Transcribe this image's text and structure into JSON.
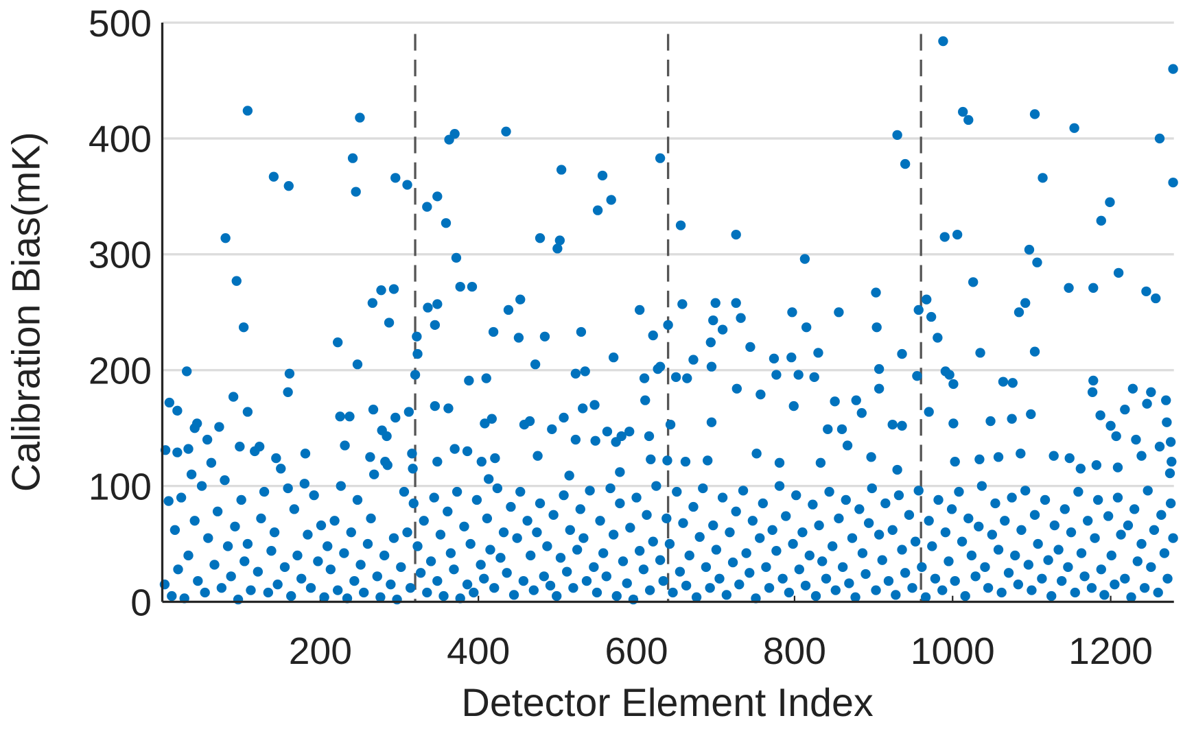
{
  "chart_data": {
    "type": "scatter",
    "x_label": "Detector Element Index",
    "y_label": "Calibration Bias(mK)",
    "xlim": [
      0,
      1280
    ],
    "ylim": [
      0,
      500
    ],
    "xticks": [
      200,
      400,
      600,
      800,
      1000,
      1200
    ],
    "yticks": [
      0,
      100,
      200,
      300,
      400,
      500
    ],
    "grid": true,
    "reference_lines": [
      320,
      640,
      960
    ],
    "x": [
      988,
      1279,
      108,
      250,
      1013,
      1020,
      1104,
      1154,
      435,
      370,
      363,
      930,
      1262,
      241,
      630,
      940,
      505,
      141,
      295,
      310,
      160,
      557,
      1114,
      1279,
      245,
      348,
      335,
      568,
      551,
      1199,
      359,
      1188,
      656,
      80,
      478,
      503,
      500,
      726,
      990,
      1006,
      1097,
      1107,
      372,
      813,
      1026,
      94,
      1210,
      1178,
      1147,
      1245,
      1257,
      903,
      377,
      392,
      277,
      293,
      266,
      453,
      658,
      700,
      726,
      967,
      1092,
      336,
      348,
      438,
      604,
      797,
      856,
      957,
      973,
      732,
      1084,
      640,
      103,
      287,
      345,
      419,
      451,
      484,
      530,
      697,
      709,
      815,
      904,
      981,
      621,
      222,
      322,
      694,
      744,
      991,
      996,
      936,
      1104,
      1035,
      830,
      774,
      796,
      672,
      571,
      630,
      627,
      472,
      247,
      323,
      31,
      161,
      320,
      388,
      410,
      523,
      535,
      610,
      695,
      650,
      664,
      777,
      805,
      825,
      907,
      955,
      1001,
      1064,
      1178,
      1076,
      159,
      1177,
      727,
      757,
      907,
      878,
      851,
      611,
      90,
      9,
      19,
      108,
      225,
      237,
      267,
      295,
      312,
      345,
      362,
      508,
      532,
      547,
      417,
      465,
      799,
      970,
      1001,
      1048,
      1099,
      1075,
      1218,
      1246,
      1271,
      1187,
      1270,
      1251,
      1228,
      1200,
      1207,
      1232,
      924,
      936,
      885,
      695,
      643,
      616,
      563,
      581,
      591,
      493,
      458,
      523,
      408,
      72,
      41,
      44,
      57,
      123,
      98,
      4,
      19,
      33,
      181,
      144,
      231,
      278,
      284,
      263,
      282,
      316,
      317,
      348,
      370,
      386,
      404,
      421,
      413,
      475,
      515,
      548,
      574,
      579,
      618,
      639,
      662,
      690,
      752,
      781,
      833,
      842,
      860,
      867,
      897,
      930,
      1003,
      1034,
      1058,
      1086,
      1128,
      1148,
      1162,
      1182,
      1209,
      1239,
      1262,
      1277,
      1276,
      1275,
      3,
      8,
      12,
      16,
      20,
      24,
      28,
      33,
      37,
      41,
      45,
      50,
      54,
      58,
      62,
      66,
      70,
      75,
      79,
      83,
      87,
      92,
      96,
      100,
      104,
      108,
      112,
      117,
      121,
      125,
      129,
      134,
      138,
      142,
      146,
      150,
      155,
      159,
      163,
      167,
      171,
      176,
      180,
      184,
      188,
      192,
      197,
      201,
      205,
      209,
      213,
      218,
      222,
      226,
      230,
      234,
      239,
      243,
      247,
      251,
      255,
      260,
      264,
      268,
      272,
      276,
      281,
      285,
      289,
      293,
      297,
      302,
      306,
      310,
      314,
      318,
      323,
      327,
      331,
      335,
      340,
      344,
      348,
      352,
      356,
      361,
      365,
      369,
      373,
      377,
      382,
      386,
      390,
      394,
      398,
      403,
      407,
      411,
      415,
      420,
      424,
      428,
      432,
      436,
      441,
      445,
      449,
      453,
      457,
      462,
      466,
      470,
      474,
      478,
      483,
      487,
      491,
      495,
      499,
      504,
      508,
      512,
      516,
      520,
      525,
      529,
      533,
      537,
      541,
      546,
      550,
      554,
      558,
      562,
      567,
      571,
      575,
      579,
      583,
      588,
      592,
      596,
      600,
      604,
      609,
      613,
      617,
      621,
      625,
      630,
      634,
      638,
      642,
      646,
      651,
      655,
      659,
      663,
      667,
      672,
      676,
      680,
      684,
      688,
      693,
      697,
      701,
      705,
      709,
      714,
      718,
      722,
      726,
      730,
      735,
      739,
      743,
      747,
      751,
      756,
      760,
      764,
      768,
      772,
      777,
      781,
      785,
      789,
      793,
      798,
      802,
      806,
      810,
      814,
      819,
      823,
      827,
      831,
      835,
      840,
      844,
      848,
      852,
      856,
      861,
      865,
      869,
      873,
      877,
      882,
      886,
      890,
      894,
      898,
      903,
      907,
      911,
      915,
      919,
      924,
      928,
      932,
      936,
      940,
      945,
      949,
      953,
      957,
      961,
      966,
      970,
      974,
      978,
      982,
      987,
      991,
      995,
      999,
      1003,
      1008,
      1012,
      1016,
      1020,
      1024,
      1029,
      1033,
      1037,
      1041,
      1045,
      1050,
      1054,
      1058,
      1062,
      1066,
      1071,
      1075,
      1079,
      1083,
      1087,
      1092,
      1096,
      1100,
      1104,
      1108,
      1113,
      1117,
      1121,
      1125,
      1129,
      1134,
      1138,
      1142,
      1146,
      1150,
      1155,
      1159,
      1163,
      1167,
      1171,
      1176,
      1180,
      1184,
      1188,
      1192,
      1197,
      1201,
      1205,
      1209,
      1213,
      1218,
      1222,
      1226,
      1230,
      1234,
      1239,
      1243,
      1247,
      1251,
      1255,
      1260,
      1264,
      1268,
      1272,
      1276,
      1279
    ],
    "series": [
      {
        "color": "#0072bd",
        "values": [
          484,
          460,
          424,
          418,
          423,
          416,
          421,
          409,
          406,
          404,
          399,
          403,
          400,
          383,
          383,
          378,
          373,
          367,
          366,
          360,
          359,
          368,
          366,
          362,
          354,
          350,
          341,
          347,
          338,
          345,
          327,
          329,
          325,
          314,
          314,
          312,
          305,
          317,
          315,
          317,
          304,
          293,
          297,
          296,
          276,
          277,
          284,
          271,
          271,
          268,
          262,
          267,
          272,
          272,
          269,
          270,
          258,
          261,
          257,
          258,
          258,
          261,
          258,
          254,
          257,
          252,
          252,
          250,
          250,
          252,
          246,
          245,
          250,
          239,
          237,
          241,
          239,
          233,
          228,
          229,
          233,
          243,
          235,
          237,
          237,
          228,
          230,
          224,
          229,
          224,
          220,
          199,
          196,
          214,
          216,
          215,
          215,
          210,
          211,
          209,
          211,
          203,
          201,
          205,
          205,
          214,
          199,
          197,
          196,
          191,
          193,
          197,
          199,
          193,
          203,
          194,
          193,
          196,
          196,
          194,
          201,
          195,
          188,
          190,
          191,
          189,
          181,
          181,
          184,
          179,
          184,
          174,
          173,
          174,
          177,
          172,
          165,
          164,
          160,
          160,
          166,
          159,
          164,
          169,
          167,
          159,
          167,
          170,
          158,
          156,
          169,
          164,
          154,
          156,
          162,
          158,
          166,
          171,
          155,
          161,
          174,
          181,
          184,
          152,
          143,
          140,
          153,
          152,
          163,
          155,
          153,
          143,
          147,
          143,
          147,
          149,
          153,
          140,
          154,
          151,
          150,
          154,
          140,
          134,
          134,
          131,
          129,
          132,
          128,
          124,
          135,
          148,
          143,
          125,
          121,
          128,
          115,
          121,
          132,
          130,
          121,
          124,
          106,
          126,
          109,
          139,
          138,
          112,
          123,
          122,
          121,
          122,
          128,
          120,
          120,
          149,
          149,
          135,
          125,
          114,
          121,
          123,
          125,
          128,
          126,
          124,
          115,
          118,
          116,
          126,
          134,
          121,
          138,
          111,
          15,
          87,
          5,
          62,
          28,
          90,
          3,
          40,
          110,
          70,
          18,
          100,
          8,
          55,
          120,
          32,
          78,
          12,
          105,
          48,
          22,
          65,
          2,
          88,
          35,
          50,
          10,
          130,
          26,
          72,
          95,
          8,
          44,
          60,
          15,
          115,
          30,
          98,
          5,
          80,
          40,
          20,
          102,
          58,
          12,
          92,
          35,
          66,
          4,
          48,
          28,
          70,
          10,
          100,
          42,
          3,
          60,
          18,
          88,
          32,
          8,
          50,
          72,
          110,
          22,
          4,
          40,
          118,
          15,
          55,
          2,
          30,
          95,
          60,
          12,
          85,
          48,
          25,
          70,
          8,
          35,
          90,
          18,
          58,
          5,
          78,
          42,
          28,
          95,
          3,
          65,
          15,
          50,
          8,
          88,
          32,
          20,
          72,
          45,
          12,
          98,
          38,
          60,
          25,
          82,
          6,
          55,
          95,
          18,
          70,
          40,
          10,
          60,
          85,
          22,
          48,
          14,
          75,
          5,
          38,
          92,
          26,
          62,
          12,
          45,
          80,
          55,
          18,
          96,
          30,
          8,
          70,
          42,
          22,
          98,
          58,
          5,
          85,
          35,
          16,
          64,
          2,
          90,
          44,
          28,
          75,
          10,
          52,
          100,
          36,
          18,
          72,
          50,
          8,
          95,
          26,
          68,
          14,
          40,
          82,
          4,
          56,
          98,
          30,
          12,
          66,
          45,
          20,
          90,
          6,
          60,
          34,
          78,
          15,
          96,
          42,
          25,
          70,
          3,
          55,
          85,
          30,
          12,
          62,
          44,
          100,
          20,
          74,
          8,
          50,
          92,
          28,
          60,
          14,
          40,
          84,
          5,
          66,
          35,
          20,
          95,
          48,
          10,
          72,
          30,
          88,
          16,
          55,
          4,
          80,
          42,
          24,
          68,
          98,
          10,
          58,
          36,
          85,
          18,
          62,
          6,
          92,
          45,
          25,
          75,
          12,
          52,
          96,
          30,
          4,
          70,
          48,
          20,
          88,
          10,
          60,
          35,
          80,
          18,
          95,
          52,
          5,
          72,
          40,
          22,
          65,
          100,
          30,
          12,
          58,
          85,
          45,
          8,
          70,
          25,
          90,
          40,
          15,
          62,
          96,
          32,
          10,
          75,
          50,
          20,
          88,
          36,
          5,
          66,
          45,
          18,
          80,
          30,
          60,
          8,
          95,
          42,
          22,
          70,
          12,
          55,
          88,
          28,
          6,
          74,
          40,
          15,
          90,
          58,
          20,
          66,
          4,
          80,
          35,
          50,
          12,
          96,
          30,
          62,
          8,
          75,
          42,
          20,
          85,
          55
        ]
      }
    ]
  }
}
